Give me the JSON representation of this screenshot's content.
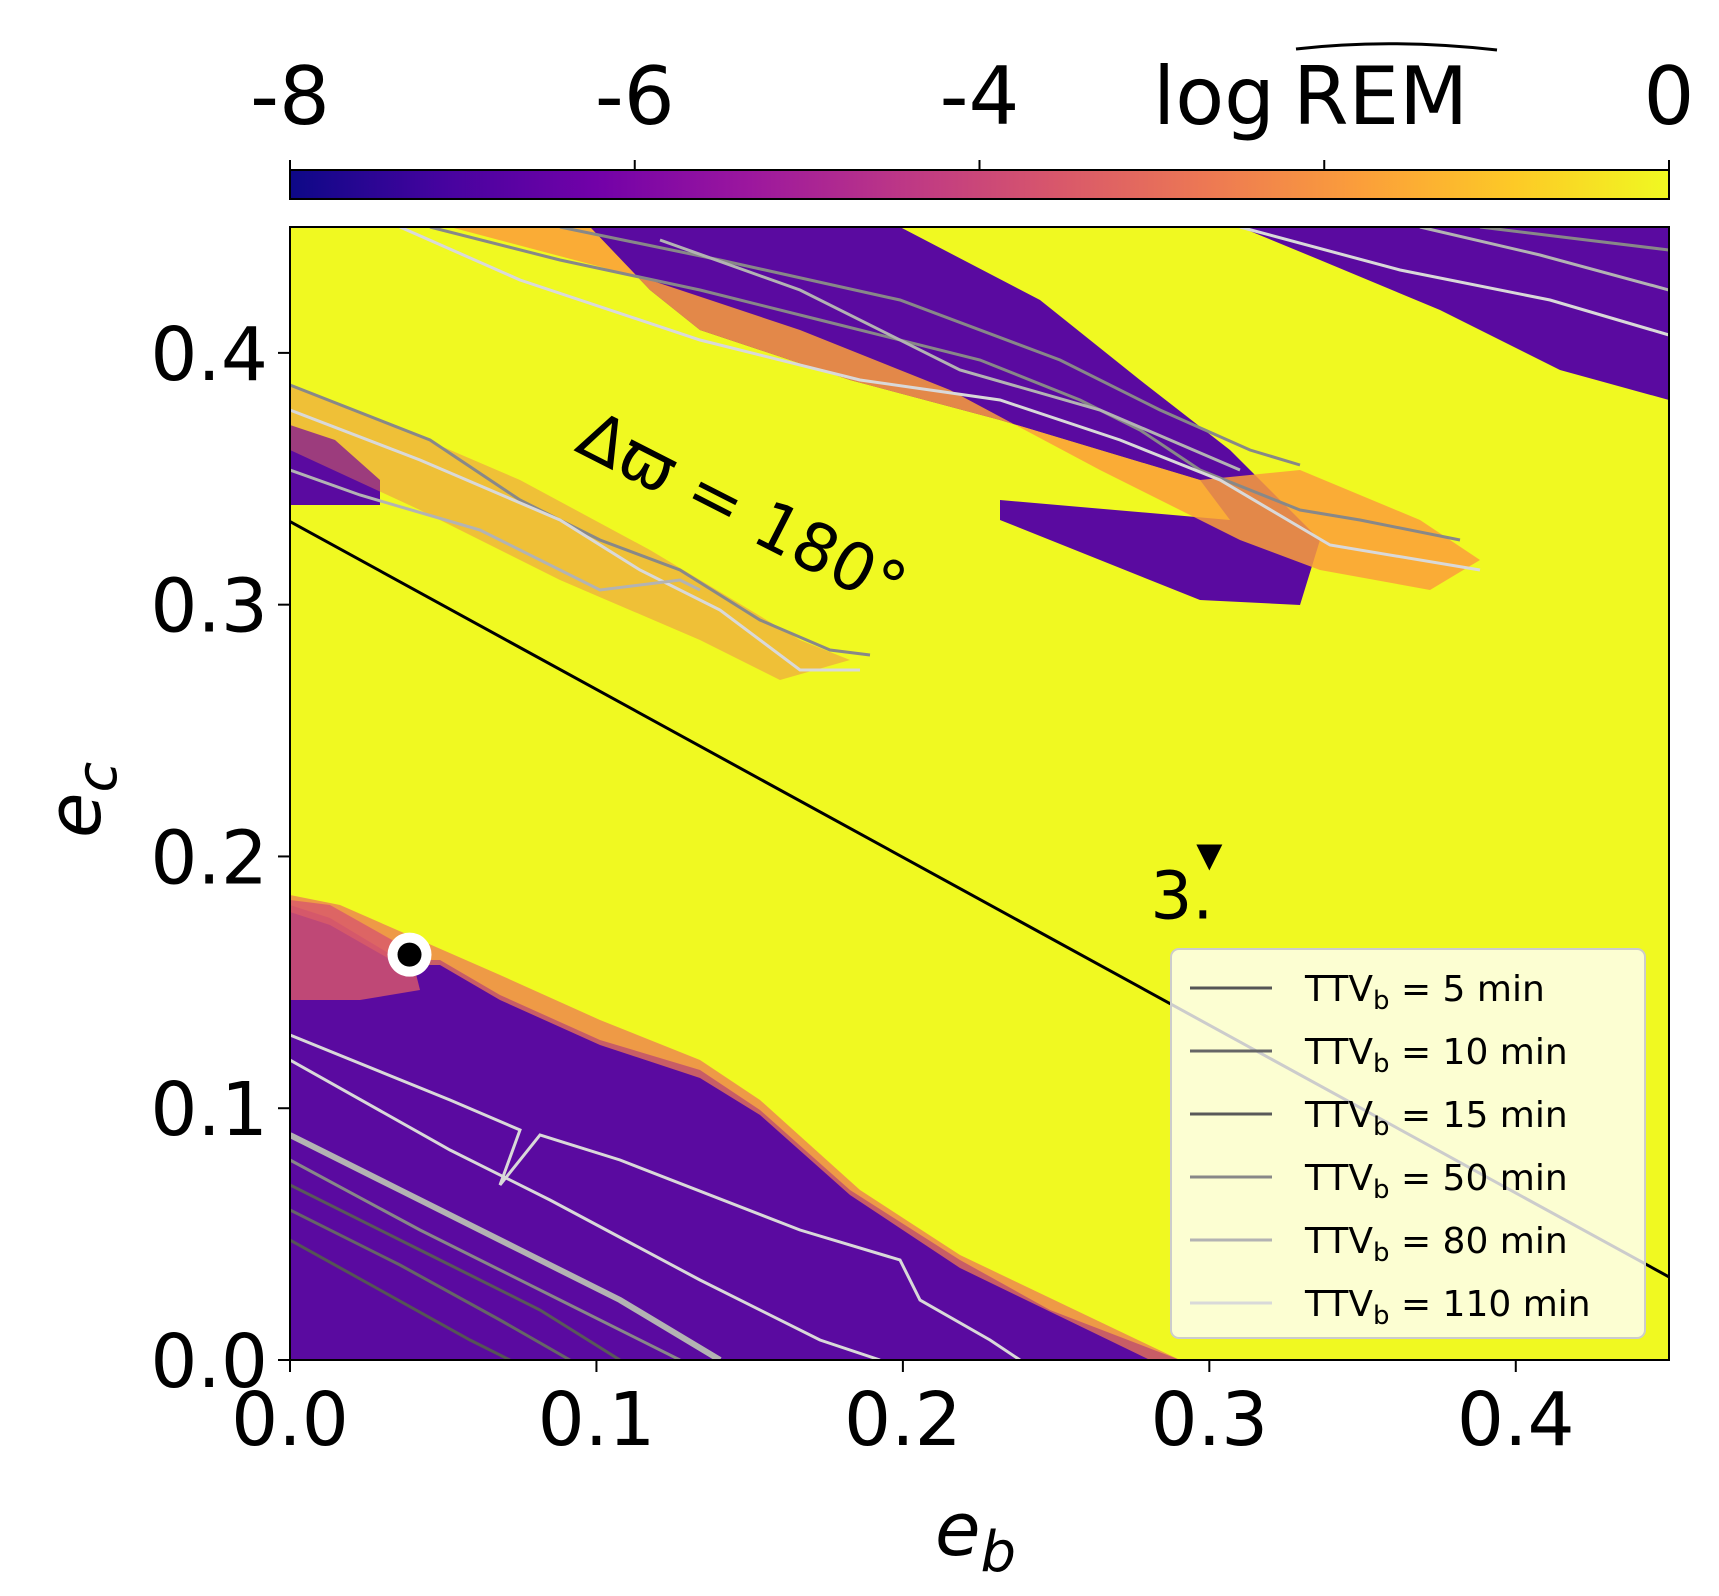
{
  "chart_data": {
    "type": "heatmap",
    "xlabel": "e",
    "xlabel_sub": "b",
    "ylabel": "e",
    "ylabel_sub": "c",
    "xlim": [
      0,
      0.45
    ],
    "ylim": [
      0,
      0.45
    ],
    "xticks": [
      0.0,
      0.1,
      0.2,
      0.3,
      0.4
    ],
    "yticks": [
      0.0,
      0.1,
      0.2,
      0.3,
      0.4
    ],
    "xtick_labels": [
      "0.0",
      "0.1",
      "0.2",
      "0.3",
      "0.4"
    ],
    "ytick_labels": [
      "0.0",
      "0.1",
      "0.2",
      "0.3",
      "0.4"
    ],
    "colorbar": {
      "label_prefix": "log",
      "label_main": "REM",
      "range": [
        -8,
        0
      ],
      "ticks": [
        -8,
        -6,
        -4,
        -2,
        0
      ],
      "tick_labels": [
        "-8",
        "-6",
        "-4",
        "",
        "0"
      ],
      "colormap": [
        "#0d0887",
        "#46039f",
        "#7201a8",
        "#9c179e",
        "#bd3786",
        "#d8576b",
        "#ed7953",
        "#fb9f3a",
        "#fdca26",
        "#f0f921"
      ]
    },
    "background_value_color": "#f0f921",
    "stable_region_color": "#5a0aa0",
    "annotation": "Δϖ = 180°",
    "annotation_angle_deg": 27,
    "resonance_line": {
      "x": [
        0.0,
        0.45
      ],
      "y": [
        0.333,
        0.033
      ]
    },
    "marker_point": {
      "x": 0.039,
      "y": 0.161
    },
    "triangle_marker": {
      "x": 0.3,
      "y": 0.2,
      "label": "3."
    },
    "legend": {
      "position": "lower-right",
      "entries": [
        {
          "prefix": "TTV",
          "sub": "b",
          "suffix": " = 5 min",
          "color": "#555555"
        },
        {
          "prefix": "TTV",
          "sub": "b",
          "suffix": " = 10 min",
          "color": "#666666"
        },
        {
          "prefix": "TTV",
          "sub": "b",
          "suffix": " = 15 min",
          "color": "#595959"
        },
        {
          "prefix": "TTV",
          "sub": "b",
          "suffix": " = 50 min",
          "color": "#888888"
        },
        {
          "prefix": "TTV",
          "sub": "b",
          "suffix": " = 80 min",
          "color": "#b3b3b3"
        },
        {
          "prefix": "TTV",
          "sub": "b",
          "suffix": " = 110 min",
          "color": "#d9d9d9"
        }
      ]
    }
  }
}
